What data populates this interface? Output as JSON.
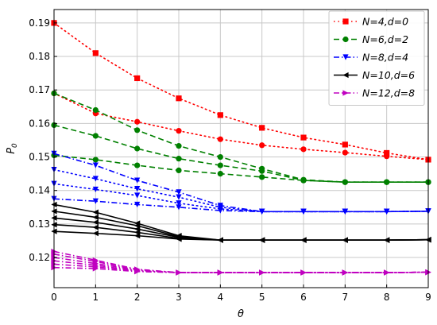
{
  "chart_data": {
    "type": "line",
    "xlabel": "θ",
    "ylabel": "P",
    "ylabel_sub": "0",
    "xlim": [
      0,
      9
    ],
    "ylim": [
      0.111,
      0.194
    ],
    "x_ticks": [
      0,
      1,
      2,
      3,
      4,
      5,
      6,
      7,
      8,
      9
    ],
    "x_tick_labels": [
      "0",
      "1",
      "2",
      "3",
      "4",
      "5",
      "6",
      "7",
      "8",
      "9"
    ],
    "y_ticks": [
      0.12,
      0.13,
      0.14,
      0.15,
      0.16,
      0.17,
      0.18,
      0.19
    ],
    "y_tick_labels": [
      "0.12",
      "0.13",
      "0.14",
      "0.15",
      "0.16",
      "0.17",
      "0.18",
      "0.19"
    ],
    "grid": true,
    "legend_position": "top-right",
    "x": [
      0,
      1,
      2,
      3,
      4,
      5,
      6,
      7,
      8,
      9
    ],
    "series": [
      {
        "name": "N=4,d=0",
        "color": "#ff0000",
        "dash": "dotted",
        "marker": "square",
        "values": [
          0.19,
          0.181,
          0.1735,
          0.1675,
          0.1625,
          0.1587,
          0.1558,
          0.1537,
          0.1512,
          0.1492
        ]
      },
      {
        "name": "",
        "color": "#ff0000",
        "dash": "dotted",
        "marker": "circle",
        "values": [
          0.169,
          0.163,
          0.1605,
          0.1578,
          0.1553,
          0.1535,
          0.1523,
          0.1513,
          0.1502,
          0.1492
        ]
      },
      {
        "name": "N=6,d=2",
        "color": "#008000",
        "dash": "dashed",
        "marker": "circle",
        "values": [
          0.169,
          0.164,
          0.158,
          0.1533,
          0.15,
          0.1465,
          0.1432,
          0.1425,
          0.1425,
          0.1425
        ]
      },
      {
        "name": "",
        "color": "#008000",
        "dash": "dashed",
        "marker": "circle",
        "values": [
          0.1595,
          0.1563,
          0.1525,
          0.1495,
          0.1475,
          0.1458,
          0.143,
          0.1425,
          0.1425,
          0.1425
        ]
      },
      {
        "name": "",
        "color": "#008000",
        "dash": "dashed",
        "marker": "circle",
        "values": [
          0.1505,
          0.1492,
          0.1475,
          0.146,
          0.145,
          0.144,
          0.143,
          0.1425,
          0.1425,
          0.1425
        ]
      },
      {
        "name": "N=8,d=4",
        "color": "#0000ff",
        "dash": "dashdot",
        "marker": "triangle",
        "values": [
          0.151,
          0.1475,
          0.143,
          0.1395,
          0.1355,
          0.1337,
          0.1337,
          0.1337,
          0.1337,
          0.1338
        ]
      },
      {
        "name": "",
        "color": "#0000ff",
        "dash": "dotted",
        "marker": "triangle",
        "values": [
          0.1462,
          0.1435,
          0.1405,
          0.138,
          0.135,
          0.1337,
          0.1337,
          0.1337,
          0.1337,
          0.1338
        ]
      },
      {
        "name": "",
        "color": "#0000ff",
        "dash": "dotted",
        "marker": "triangle",
        "values": [
          0.142,
          0.1403,
          0.1385,
          0.1362,
          0.1345,
          0.1337,
          0.1337,
          0.1337,
          0.1337,
          0.1338
        ]
      },
      {
        "name": "",
        "color": "#0000ff",
        "dash": "dashdot",
        "marker": "triangle",
        "values": [
          0.1375,
          0.1368,
          0.1358,
          0.135,
          0.134,
          0.1337,
          0.1337,
          0.1337,
          0.1337,
          0.1338
        ]
      },
      {
        "name": "N=10,d=6",
        "color": "#000000",
        "dash": "solid",
        "marker": "triangle-left",
        "values": [
          0.1358,
          0.1335,
          0.1302,
          0.1265,
          0.1252,
          0.1252,
          0.1252,
          0.1252,
          0.1252,
          0.1253
        ]
      },
      {
        "name": "",
        "color": "#000000",
        "dash": "solid",
        "marker": "triangle-left",
        "values": [
          0.1338,
          0.132,
          0.1295,
          0.1262,
          0.1252,
          0.1252,
          0.1252,
          0.1252,
          0.1252,
          0.1253
        ]
      },
      {
        "name": "",
        "color": "#000000",
        "dash": "solid",
        "marker": "triangle-left",
        "values": [
          0.1318,
          0.1305,
          0.1285,
          0.126,
          0.1252,
          0.1252,
          0.1252,
          0.1252,
          0.1252,
          0.1253
        ]
      },
      {
        "name": "",
        "color": "#000000",
        "dash": "solid",
        "marker": "triangle-left",
        "values": [
          0.1298,
          0.129,
          0.1275,
          0.1257,
          0.1252,
          0.1252,
          0.1252,
          0.1252,
          0.1252,
          0.1253
        ]
      },
      {
        "name": "",
        "color": "#000000",
        "dash": "solid",
        "marker": "triangle-left",
        "values": [
          0.1278,
          0.1272,
          0.1265,
          0.1255,
          0.1252,
          0.1252,
          0.1252,
          0.1252,
          0.1252,
          0.1253
        ]
      },
      {
        "name": "N=12,d=8",
        "color": "#c000c0",
        "dash": "dashdot",
        "marker": "triangle-right",
        "values": [
          0.1218,
          0.1192,
          0.1165,
          0.1155,
          0.1155,
          0.1155,
          0.1155,
          0.1155,
          0.1155,
          0.1156
        ]
      },
      {
        "name": "",
        "color": "#c000c0",
        "dash": "dashdot",
        "marker": "triangle-right",
        "values": [
          0.121,
          0.1188,
          0.1163,
          0.1155,
          0.1155,
          0.1155,
          0.1155,
          0.1155,
          0.1155,
          0.1156
        ]
      },
      {
        "name": "",
        "color": "#c000c0",
        "dash": "dashdot",
        "marker": "triangle-right",
        "values": [
          0.12,
          0.1182,
          0.1162,
          0.1155,
          0.1155,
          0.1155,
          0.1155,
          0.1155,
          0.1155,
          0.1156
        ]
      },
      {
        "name": "",
        "color": "#c000c0",
        "dash": "dashdot",
        "marker": "triangle-right",
        "values": [
          0.119,
          0.1177,
          0.116,
          0.1155,
          0.1155,
          0.1155,
          0.1155,
          0.1155,
          0.1155,
          0.1156
        ]
      },
      {
        "name": "",
        "color": "#c000c0",
        "dash": "dashdot",
        "marker": "triangle-right",
        "values": [
          0.118,
          0.1172,
          0.116,
          0.1155,
          0.1155,
          0.1155,
          0.1155,
          0.1155,
          0.1155,
          0.1156
        ]
      },
      {
        "name": "",
        "color": "#c000c0",
        "dash": "dashdot",
        "marker": "triangle-right",
        "values": [
          0.117,
          0.1167,
          0.1158,
          0.1155,
          0.1155,
          0.1155,
          0.1155,
          0.1155,
          0.1155,
          0.1156
        ]
      }
    ]
  }
}
